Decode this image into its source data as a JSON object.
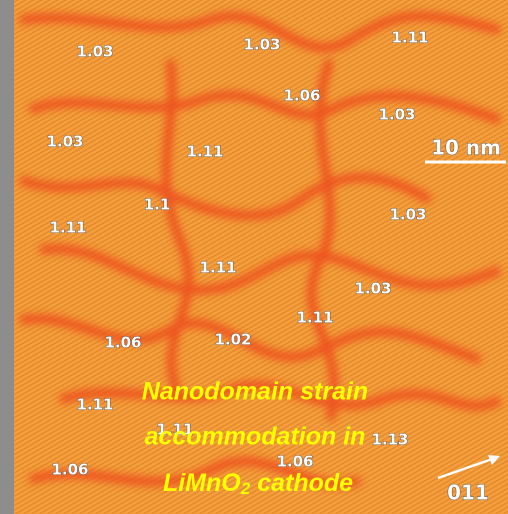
{
  "image": {
    "domain_labels": [
      "1.03",
      "1.03",
      "1.11",
      "1.06",
      "1.03",
      "1.03",
      "1.11",
      "1.1",
      "1.11",
      "1.03",
      "1.11",
      "1.03",
      "1.11",
      "1.06",
      "1.02",
      "1.11",
      "1.11",
      "1.13",
      "1.06",
      "1.06"
    ],
    "scale_bar": "10 nm",
    "direction": "011",
    "caption": {
      "line1": "Nanodomain strain",
      "line2": "accommodation in",
      "formula": "LiMnO",
      "subscript": "2",
      "rest": "cathode"
    }
  }
}
